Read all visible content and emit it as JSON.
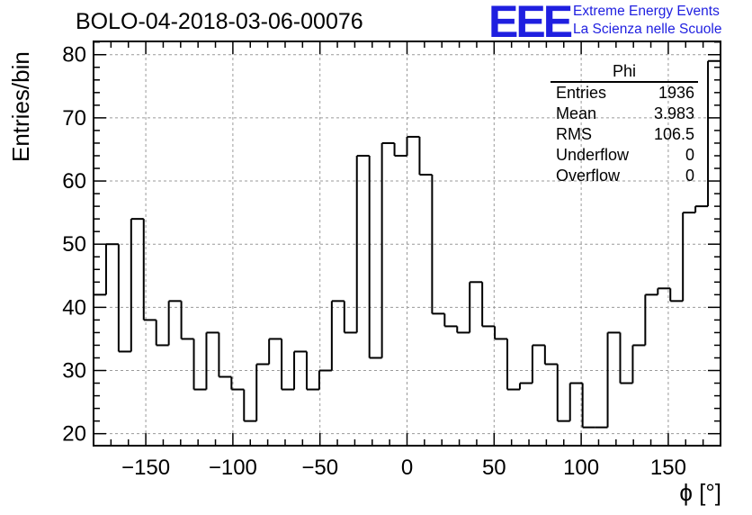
{
  "chart_data": {
    "type": "histogram",
    "title": "BOLO-04-2018-03-06-00076",
    "xlabel": "ϕ [°]",
    "ylabel": "Entries/bin",
    "xlim": [
      -180,
      180
    ],
    "ylim": [
      18.1,
      82.1
    ],
    "xticks": [
      -150,
      -100,
      -50,
      0,
      50,
      100,
      150
    ],
    "xtick_labels": [
      "−150",
      "−100",
      "−50",
      "0",
      "50",
      "100",
      "150"
    ],
    "yticks": [
      20,
      30,
      40,
      50,
      60,
      70,
      80
    ],
    "ytick_labels": [
      "20",
      "30",
      "40",
      "50",
      "60",
      "70",
      "80"
    ],
    "grid": true,
    "bin_edges_start": -180,
    "bin_width": 7.2,
    "values": [
      42,
      50,
      33,
      54,
      38,
      34,
      41,
      35,
      27,
      36,
      29,
      27,
      22,
      31,
      35,
      27,
      33,
      27,
      30,
      41,
      36,
      64,
      32,
      66,
      64,
      67,
      61,
      39,
      37,
      36,
      44,
      37,
      35,
      27,
      28,
      34,
      31,
      22,
      28,
      21,
      21,
      36,
      28,
      34,
      42,
      43,
      41,
      55,
      56,
      79
    ],
    "stats": {
      "title": "Phi",
      "rows": [
        {
          "label": "Entries",
          "value": "1936"
        },
        {
          "label": "Mean",
          "value": "3.983"
        },
        {
          "label": "RMS",
          "value": "106.5"
        },
        {
          "label": "Underflow",
          "value": "0"
        },
        {
          "label": "Overflow",
          "value": "0"
        }
      ]
    }
  },
  "logo": {
    "mark": "EEE",
    "line1": "Extreme Energy Events",
    "line2": "La Scienza nelle Scuole",
    "color": "#1f1fe0"
  }
}
